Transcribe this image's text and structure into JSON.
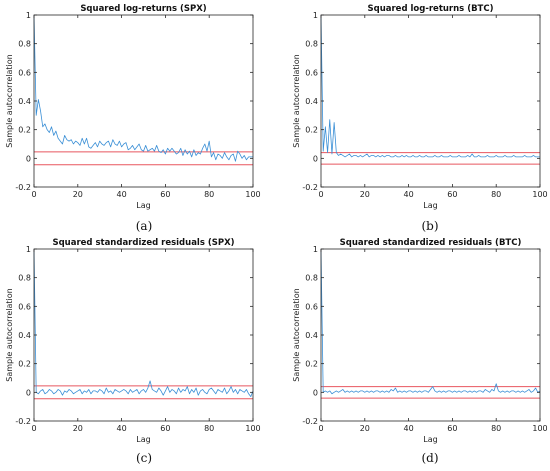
{
  "chart_data": [
    {
      "type": "line",
      "panel": "(a)",
      "title": "Squared log-returns (SPX)",
      "xlabel": "Lag",
      "ylabel": "Sample autocorrelation",
      "xlim": [
        0,
        100
      ],
      "ylim": [
        -0.2,
        1
      ],
      "xticks": [
        0,
        20,
        40,
        60,
        80,
        100
      ],
      "yticks": [
        -0.2,
        0,
        0.2,
        0.4,
        0.6,
        0.8,
        1
      ],
      "confidence_bounds": [
        0.045,
        -0.045
      ],
      "colors": {
        "series": "#3a8fd6",
        "bounds": "#e8565f",
        "axes": "#262626"
      },
      "series": [
        {
          "x": [
            0,
            1,
            2,
            3,
            4,
            5,
            6,
            7,
            8,
            9,
            10,
            11,
            12,
            13,
            14,
            15,
            16,
            17,
            18,
            19,
            20,
            21,
            22,
            23,
            24,
            25,
            26,
            27,
            28,
            29,
            30,
            31,
            32,
            33,
            34,
            35,
            36,
            37,
            38,
            39,
            40,
            41,
            42,
            43,
            44,
            45,
            46,
            47,
            48,
            49,
            50,
            51,
            52,
            53,
            54,
            55,
            56,
            57,
            58,
            59,
            60,
            61,
            62,
            63,
            64,
            65,
            66,
            67,
            68,
            69,
            70,
            71,
            72,
            73,
            74,
            75,
            76,
            77,
            78,
            79,
            80,
            81,
            82,
            83,
            84,
            85,
            86,
            87,
            88,
            89,
            90,
            91,
            92,
            93,
            94,
            95,
            96,
            97,
            98,
            99,
            100
          ],
          "values": [
            1.0,
            0.3,
            0.41,
            0.33,
            0.22,
            0.24,
            0.2,
            0.18,
            0.22,
            0.16,
            0.19,
            0.14,
            0.12,
            0.1,
            0.16,
            0.13,
            0.12,
            0.13,
            0.1,
            0.12,
            0.11,
            0.09,
            0.14,
            0.1,
            0.14,
            0.08,
            0.07,
            0.09,
            0.11,
            0.08,
            0.12,
            0.1,
            0.09,
            0.11,
            0.12,
            0.08,
            0.13,
            0.1,
            0.09,
            0.12,
            0.08,
            0.1,
            0.11,
            0.06,
            0.07,
            0.09,
            0.06,
            0.08,
            0.1,
            0.06,
            0.05,
            0.09,
            0.05,
            0.06,
            0.07,
            0.05,
            0.09,
            0.05,
            0.04,
            0.06,
            0.03,
            0.07,
            0.05,
            0.07,
            0.05,
            0.03,
            0.04,
            0.07,
            0.02,
            0.06,
            0.03,
            0.05,
            0.01,
            0.06,
            0.02,
            0.04,
            0.03,
            0.07,
            0.1,
            0.05,
            0.12,
            0.01,
            0.04,
            -0.01,
            0.03,
            0.02,
            0.0,
            0.04,
            0.01,
            -0.01,
            0.02,
            0.03,
            -0.02,
            0.05,
            0.03,
            0.0,
            0.02,
            -0.01,
            0.01,
            0.01,
            0.01
          ]
        }
      ]
    },
    {
      "type": "line",
      "panel": "(b)",
      "title": "Squared log-returns (BTC)",
      "xlabel": "Lag",
      "ylabel": "Sample autocorrelation",
      "xlim": [
        0,
        100
      ],
      "ylim": [
        -0.2,
        1
      ],
      "xticks": [
        0,
        20,
        40,
        60,
        80,
        100
      ],
      "yticks": [
        -0.2,
        0,
        0.2,
        0.4,
        0.6,
        0.8,
        1
      ],
      "confidence_bounds": [
        0.04,
        -0.04
      ],
      "colors": {
        "series": "#3a8fd6",
        "bounds": "#e8565f",
        "axes": "#262626"
      },
      "series": [
        {
          "x": [
            0,
            1,
            2,
            3,
            4,
            5,
            6,
            7,
            8,
            9,
            10,
            11,
            12,
            13,
            14,
            15,
            16,
            17,
            18,
            19,
            20,
            21,
            22,
            23,
            24,
            25,
            26,
            27,
            28,
            29,
            30,
            31,
            32,
            33,
            34,
            35,
            36,
            37,
            38,
            39,
            40,
            41,
            42,
            43,
            44,
            45,
            46,
            47,
            48,
            49,
            50,
            51,
            52,
            53,
            54,
            55,
            56,
            57,
            58,
            59,
            60,
            61,
            62,
            63,
            64,
            65,
            66,
            67,
            68,
            69,
            70,
            71,
            72,
            73,
            74,
            75,
            76,
            77,
            78,
            79,
            80,
            81,
            82,
            83,
            84,
            85,
            86,
            87,
            88,
            89,
            90,
            91,
            92,
            93,
            94,
            95,
            96,
            97,
            98,
            99,
            100
          ],
          "values": [
            1.0,
            0.05,
            0.22,
            0.04,
            0.27,
            0.03,
            0.25,
            0.04,
            0.02,
            0.03,
            0.02,
            0.01,
            0.02,
            0.03,
            0.01,
            0.02,
            0.02,
            0.01,
            0.02,
            0.01,
            0.02,
            0.03,
            0.01,
            0.02,
            0.02,
            0.01,
            0.02,
            0.01,
            0.02,
            0.01,
            0.02,
            0.02,
            0.01,
            0.01,
            0.02,
            0.01,
            0.01,
            0.02,
            0.01,
            0.02,
            0.01,
            0.01,
            0.02,
            0.01,
            0.01,
            0.02,
            0.01,
            0.01,
            0.02,
            0.01,
            0.01,
            0.01,
            0.02,
            0.01,
            0.01,
            0.02,
            0.01,
            0.01,
            0.01,
            0.02,
            0.01,
            0.01,
            0.01,
            0.02,
            0.01,
            0.01,
            0.01,
            0.02,
            0.01,
            0.03,
            0.01,
            0.01,
            0.02,
            0.01,
            0.01,
            0.01,
            0.02,
            0.01,
            0.01,
            0.01,
            0.02,
            0.01,
            0.01,
            0.01,
            0.02,
            0.01,
            0.01,
            0.01,
            0.02,
            0.01,
            0.01,
            0.01,
            0.01,
            0.02,
            0.01,
            0.01,
            0.01,
            0.02,
            0.01,
            0.01,
            0.01
          ]
        }
      ]
    },
    {
      "type": "line",
      "panel": "(c)",
      "title": "Squared standardized residuals (SPX)",
      "xlabel": "Lag",
      "ylabel": "Sample autocorrelation",
      "xlim": [
        0,
        100
      ],
      "ylim": [
        -0.2,
        1
      ],
      "xticks": [
        0,
        20,
        40,
        60,
        80,
        100
      ],
      "yticks": [
        -0.2,
        0,
        0.2,
        0.4,
        0.6,
        0.8,
        1
      ],
      "confidence_bounds": [
        0.045,
        -0.045
      ],
      "colors": {
        "series": "#3a8fd6",
        "bounds": "#e8565f",
        "axes": "#262626"
      },
      "series": [
        {
          "x": [
            0,
            1,
            2,
            3,
            4,
            5,
            6,
            7,
            8,
            9,
            10,
            11,
            12,
            13,
            14,
            15,
            16,
            17,
            18,
            19,
            20,
            21,
            22,
            23,
            24,
            25,
            26,
            27,
            28,
            29,
            30,
            31,
            32,
            33,
            34,
            35,
            36,
            37,
            38,
            39,
            40,
            41,
            42,
            43,
            44,
            45,
            46,
            47,
            48,
            49,
            50,
            51,
            52,
            53,
            54,
            55,
            56,
            57,
            58,
            59,
            60,
            61,
            62,
            63,
            64,
            65,
            66,
            67,
            68,
            69,
            70,
            71,
            72,
            73,
            74,
            75,
            76,
            77,
            78,
            79,
            80,
            81,
            82,
            83,
            84,
            85,
            86,
            87,
            88,
            89,
            90,
            91,
            92,
            93,
            94,
            95,
            96,
            97,
            98,
            99,
            100
          ],
          "values": [
            1.0,
            0.0,
            -0.01,
            0.01,
            0.02,
            -0.01,
            0.0,
            0.02,
            0.01,
            -0.01,
            0.0,
            0.02,
            0.01,
            -0.02,
            0.01,
            0.0,
            0.02,
            0.01,
            -0.01,
            0.0,
            0.01,
            0.02,
            -0.01,
            0.01,
            0.0,
            0.02,
            -0.01,
            0.01,
            0.01,
            0.0,
            0.02,
            0.01,
            -0.01,
            0.03,
            0.0,
            0.01,
            -0.01,
            0.02,
            0.01,
            0.0,
            0.01,
            0.02,
            0.01,
            -0.01,
            0.02,
            0.0,
            0.01,
            0.02,
            -0.01,
            0.01,
            0.02,
            0.0,
            0.03,
            0.08,
            0.02,
            0.01,
            0.0,
            0.03,
            0.01,
            -0.02,
            0.01,
            0.04,
            0.0,
            0.02,
            0.01,
            -0.01,
            0.03,
            0.0,
            0.02,
            0.01,
            0.04,
            -0.01,
            0.02,
            0.0,
            0.03,
            -0.02,
            0.01,
            0.02,
            0.0,
            -0.01,
            0.02,
            0.03,
            0.01,
            -0.01,
            0.02,
            0.01,
            0.0,
            0.03,
            -0.01,
            0.01,
            0.04,
            0.0,
            0.02,
            -0.01,
            0.02,
            0.01,
            0.0,
            0.02,
            -0.01,
            -0.03,
            0.01
          ]
        }
      ]
    },
    {
      "type": "line",
      "panel": "(d)",
      "title": "Squared standardized residuals (BTC)",
      "xlabel": "Lag",
      "ylabel": "Sample autocorrelation",
      "xlim": [
        0,
        100
      ],
      "ylim": [
        -0.2,
        1
      ],
      "xticks": [
        0,
        20,
        40,
        60,
        80,
        100
      ],
      "yticks": [
        -0.2,
        0,
        0.2,
        0.4,
        0.6,
        0.8,
        1
      ],
      "confidence_bounds": [
        0.04,
        -0.04
      ],
      "colors": {
        "series": "#3a8fd6",
        "bounds": "#e8565f",
        "axes": "#262626"
      },
      "series": [
        {
          "x": [
            0,
            1,
            2,
            3,
            4,
            5,
            6,
            7,
            8,
            9,
            10,
            11,
            12,
            13,
            14,
            15,
            16,
            17,
            18,
            19,
            20,
            21,
            22,
            23,
            24,
            25,
            26,
            27,
            28,
            29,
            30,
            31,
            32,
            33,
            34,
            35,
            36,
            37,
            38,
            39,
            40,
            41,
            42,
            43,
            44,
            45,
            46,
            47,
            48,
            49,
            50,
            51,
            52,
            53,
            54,
            55,
            56,
            57,
            58,
            59,
            60,
            61,
            62,
            63,
            64,
            65,
            66,
            67,
            68,
            69,
            70,
            71,
            72,
            73,
            74,
            75,
            76,
            77,
            78,
            79,
            80,
            81,
            82,
            83,
            84,
            85,
            86,
            87,
            88,
            89,
            90,
            91,
            92,
            93,
            94,
            95,
            96,
            97,
            98,
            99,
            100
          ],
          "values": [
            1.0,
            0.0,
            0.01,
            0.0,
            0.01,
            -0.01,
            0.0,
            0.01,
            0.0,
            0.01,
            0.02,
            0.0,
            0.01,
            0.0,
            0.01,
            0.0,
            0.01,
            0.0,
            0.01,
            0.01,
            0.0,
            0.01,
            0.0,
            0.01,
            0.0,
            0.01,
            0.01,
            0.0,
            0.01,
            0.0,
            0.01,
            0.0,
            0.02,
            0.01,
            0.03,
            0.0,
            0.01,
            0.0,
            0.01,
            0.0,
            0.01,
            0.01,
            0.0,
            0.01,
            0.0,
            0.01,
            0.0,
            0.01,
            0.01,
            0.0,
            0.02,
            0.04,
            0.01,
            0.0,
            0.01,
            0.0,
            0.01,
            0.0,
            0.01,
            0.01,
            0.0,
            0.01,
            0.0,
            0.01,
            0.0,
            0.01,
            0.01,
            0.0,
            0.01,
            0.0,
            0.01,
            0.0,
            0.01,
            0.01,
            0.0,
            0.02,
            0.01,
            0.0,
            0.02,
            0.01,
            0.06,
            0.01,
            0.0,
            0.01,
            0.0,
            0.01,
            0.0,
            0.01,
            0.01,
            0.0,
            0.01,
            0.0,
            0.01,
            0.0,
            0.01,
            0.02,
            0.0,
            0.01,
            0.03,
            0.0,
            0.01
          ]
        }
      ]
    }
  ]
}
